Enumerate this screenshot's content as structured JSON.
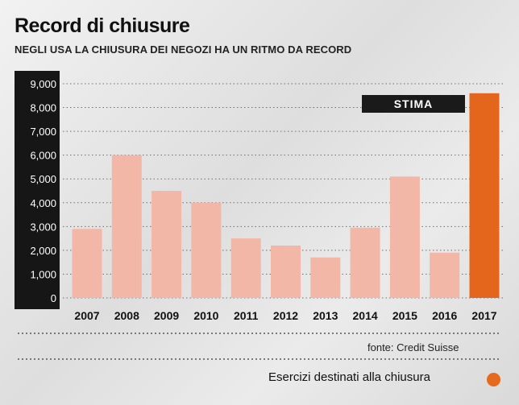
{
  "title": "Record di chiusure",
  "subtitle": "NEGLI USA LA CHIUSURA DEI NEGOZI HA UN RITMO DA RECORD",
  "source": "fonte:  Credit Suisse",
  "legend_label": "Esercizi destinati alla chiusura",
  "colors": {
    "bar": "#f2b7a6",
    "highlight": "#e4661c",
    "axis_box": "#161616",
    "badge": "#1a1a1a",
    "legend_dot": "#e46a1e"
  },
  "chart_data": {
    "type": "bar",
    "title": "Record di chiusure",
    "subtitle": "NEGLI USA LA CHIUSURA DEI NEGOZI HA UN RITMO DA RECORD",
    "categories": [
      "2007",
      "2008",
      "2009",
      "2010",
      "2011",
      "2012",
      "2013",
      "2014",
      "2015",
      "2016",
      "2017"
    ],
    "values": [
      2900,
      6000,
      4500,
      4000,
      2500,
      2200,
      1700,
      2950,
      5100,
      1900,
      8600
    ],
    "highlight_category": "2017",
    "highlight_label": "STIMA",
    "yticks": [
      "9,000",
      "8,000",
      "7,000",
      "6,000",
      "5,000",
      "4,000",
      "3,000",
      "2,000",
      "1,000",
      "0"
    ],
    "ylim": [
      0,
      9000
    ],
    "grid": true,
    "legend": [
      "Esercizi destinati alla chiusura"
    ]
  }
}
